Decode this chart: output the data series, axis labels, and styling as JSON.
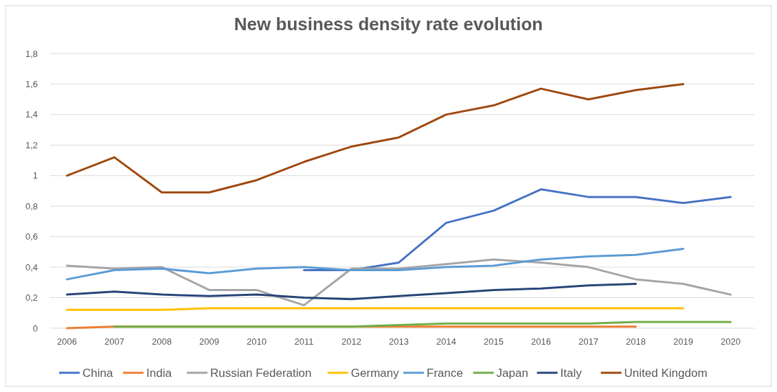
{
  "chart_data": {
    "type": "line",
    "title": "New business density rate evolution",
    "categories": [
      "2006",
      "2007",
      "2008",
      "2009",
      "2010",
      "2011",
      "2012",
      "2013",
      "2014",
      "2015",
      "2016",
      "2017",
      "2018",
      "2019",
      "2020"
    ],
    "series": [
      {
        "name": "China",
        "color": "#4472c4",
        "values": [
          null,
          null,
          null,
          null,
          null,
          0.38,
          0.38,
          0.43,
          0.69,
          0.77,
          0.91,
          0.86,
          0.86,
          0.82,
          0.86
        ]
      },
      {
        "name": "India",
        "color": "#ed7d31",
        "values": [
          0.0,
          0.01,
          0.01,
          0.01,
          0.01,
          0.01,
          0.01,
          0.01,
          0.01,
          0.01,
          0.01,
          0.01,
          0.01,
          null,
          null
        ]
      },
      {
        "name": "Russian Federation",
        "color": "#a5a5a5",
        "values": [
          0.41,
          0.39,
          0.4,
          0.25,
          0.25,
          0.15,
          0.39,
          0.39,
          0.42,
          0.45,
          0.43,
          0.4,
          0.32,
          0.29,
          0.22
        ]
      },
      {
        "name": "Germany",
        "color": "#ffc000",
        "values": [
          0.12,
          0.12,
          0.12,
          0.13,
          0.13,
          0.13,
          0.13,
          0.13,
          0.13,
          0.13,
          0.13,
          0.13,
          0.13,
          0.13,
          null
        ]
      },
      {
        "name": "France",
        "color": "#5b9bd5",
        "values": [
          0.32,
          0.38,
          0.39,
          0.36,
          0.39,
          0.4,
          0.38,
          0.38,
          0.4,
          0.41,
          0.45,
          0.47,
          0.48,
          0.52,
          null
        ]
      },
      {
        "name": "Japan",
        "color": "#70ad47",
        "values": [
          null,
          0.01,
          0.01,
          0.01,
          0.01,
          0.01,
          0.01,
          0.02,
          0.03,
          0.03,
          0.03,
          0.03,
          0.04,
          0.04,
          0.04
        ]
      },
      {
        "name": "Italy",
        "color": "#264478",
        "values": [
          0.22,
          0.24,
          0.22,
          0.21,
          0.22,
          0.2,
          0.19,
          0.21,
          0.23,
          0.25,
          0.26,
          0.28,
          0.29,
          null,
          null
        ]
      },
      {
        "name": "United Kingdom",
        "color": "#9e480e",
        "values": [
          1.0,
          1.12,
          0.89,
          0.89,
          0.97,
          1.09,
          1.19,
          1.25,
          1.4,
          1.46,
          1.57,
          1.5,
          1.56,
          1.6,
          null
        ]
      }
    ],
    "ylim": [
      0,
      1.8
    ],
    "yticks": [
      0,
      {
        "value": 0.2,
        "label": "0,2"
      },
      {
        "value": 0.4,
        "label": "0,4"
      },
      {
        "value": 0.6,
        "label": "0,6"
      },
      {
        "value": 0.8,
        "label": "0,8"
      },
      1,
      {
        "value": 1.2,
        "label": "1,2"
      },
      {
        "value": 1.4,
        "label": "1,4"
      },
      {
        "value": 1.6,
        "label": "1,6"
      },
      {
        "value": 1.8,
        "label": "1,8"
      }
    ],
    "grid": "y",
    "legend": "bottom"
  }
}
